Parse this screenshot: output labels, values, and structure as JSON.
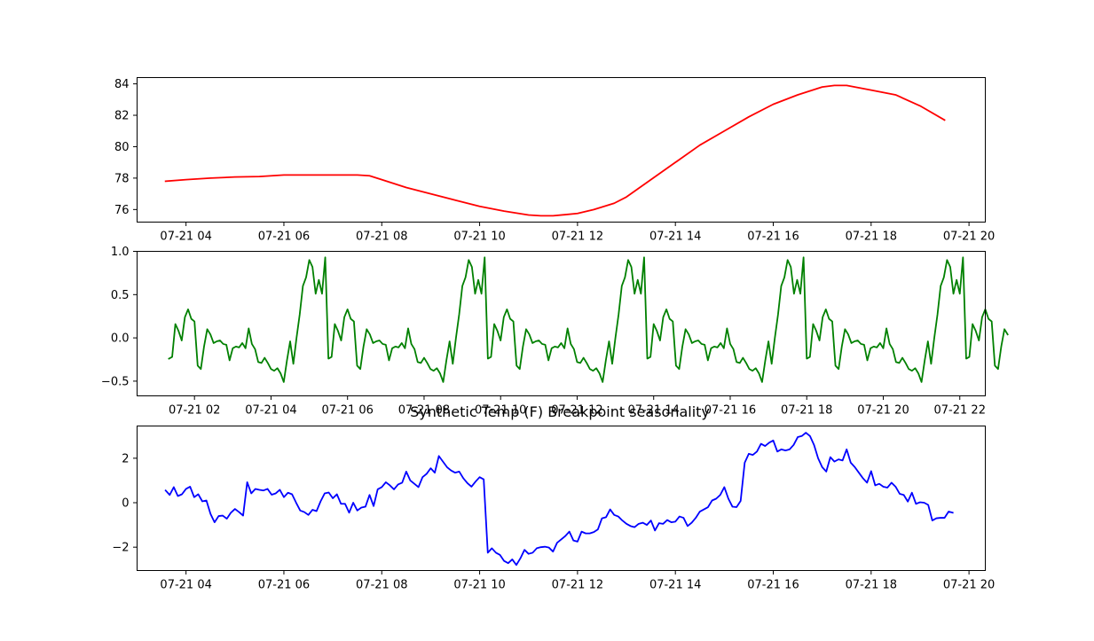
{
  "chart_data": [
    {
      "type": "line",
      "title": "",
      "xlabel": "",
      "ylabel": "",
      "grid": false,
      "legend": "none",
      "x_range": [
        "07-21 03:00",
        "07-21 20:20"
      ],
      "ylim": [
        75.2,
        84.4
      ],
      "x_ticks": [
        "07-21 04:00",
        "07-21 06:00",
        "07-21 08:00",
        "07-21 10:00",
        "07-21 12:00",
        "07-21 14:00",
        "07-21 16:00",
        "07-21 18:00",
        "07-21 20:00"
      ],
      "x_tick_labels": [
        "07-21 04",
        "07-21 06",
        "07-21 08",
        "07-21 10",
        "07-21 12",
        "07-21 14",
        "07-21 16",
        "07-21 18",
        "07-21 20"
      ],
      "y_ticks": [
        76,
        78,
        80,
        82,
        84
      ],
      "y_tick_labels": [
        "76",
        "78",
        "80",
        "82",
        "84"
      ],
      "series": [
        {
          "color": "#ff0000",
          "x": [
            "07-21 03:35",
            "07-21 04:00",
            "07-21 04:30",
            "07-21 05:00",
            "07-21 05:30",
            "07-21 06:00",
            "07-21 06:30",
            "07-21 07:00",
            "07-21 07:30",
            "07-21 07:45",
            "07-21 08:00",
            "07-21 08:30",
            "07-21 09:00",
            "07-21 09:30",
            "07-21 10:00",
            "07-21 10:30",
            "07-21 11:00",
            "07-21 11:15",
            "07-21 11:30",
            "07-21 12:00",
            "07-21 12:20",
            "07-21 12:45",
            "07-21 13:00",
            "07-21 13:30",
            "07-21 14:00",
            "07-21 14:30",
            "07-21 15:00",
            "07-21 15:30",
            "07-21 16:00",
            "07-21 16:30",
            "07-21 17:00",
            "07-21 17:15",
            "07-21 17:30",
            "07-21 18:00",
            "07-21 18:30",
            "07-21 19:00",
            "07-21 19:30"
          ],
          "values": [
            77.8,
            77.9,
            78.0,
            78.07,
            78.1,
            78.2,
            78.2,
            78.2,
            78.2,
            78.15,
            77.9,
            77.4,
            77.0,
            76.6,
            76.2,
            75.9,
            75.65,
            75.6,
            75.6,
            75.75,
            76.0,
            76.4,
            76.8,
            77.9,
            79.0,
            80.1,
            81.0,
            81.9,
            82.7,
            83.3,
            83.8,
            83.9,
            83.9,
            83.6,
            83.3,
            82.6,
            81.7
          ]
        }
      ]
    },
    {
      "type": "line",
      "title": "",
      "xlabel": "",
      "ylabel": "",
      "grid": false,
      "legend": "none",
      "x_range": [
        "07-21 00:30",
        "07-21 22:40"
      ],
      "ylim": [
        -0.67,
        1.0
      ],
      "x_ticks": [
        "07-21 02:00",
        "07-21 04:00",
        "07-21 06:00",
        "07-21 08:00",
        "07-21 10:00",
        "07-21 12:00",
        "07-21 14:00",
        "07-21 16:00",
        "07-21 18:00",
        "07-21 20:00",
        "07-21 22:00"
      ],
      "x_tick_labels": [
        "07-21 02",
        "07-21 04",
        "07-21 06",
        "07-21 08",
        "07-21 10",
        "07-21 12",
        "07-21 14",
        "07-21 16",
        "07-21 18",
        "07-21 20",
        "07-21 22"
      ],
      "y_ticks": [
        -0.5,
        0.0,
        0.5,
        1.0
      ],
      "y_tick_labels": [
        "−0.5",
        "0.0",
        "0.5",
        "1.0"
      ],
      "period_hours": 4,
      "start": "07-21 01:20",
      "step_minutes": 5,
      "periods_shown": 5.25,
      "series": [
        {
          "color": "#008000",
          "cycle_values": [
            -0.24,
            -0.22,
            0.16,
            0.08,
            -0.03,
            0.24,
            0.33,
            0.22,
            0.19,
            -0.32,
            -0.36,
            -0.1,
            0.1,
            0.04,
            -0.06,
            -0.04,
            -0.03,
            -0.07,
            -0.08,
            -0.26,
            -0.12,
            -0.1,
            -0.11,
            -0.06,
            -0.12,
            0.11,
            -0.07,
            -0.13,
            -0.28,
            -0.29,
            -0.23,
            -0.29,
            -0.36,
            -0.38,
            -0.35,
            -0.41,
            -0.51,
            -0.26,
            -0.04,
            -0.3,
            0.0,
            0.27,
            0.6,
            0.7,
            0.9,
            0.82,
            0.51,
            0.67,
            0.51,
            0.93
          ]
        }
      ]
    },
    {
      "type": "line",
      "title": "Synthetic Temp (F) Breakpoint seasonality",
      "xlabel": "",
      "ylabel": "",
      "grid": false,
      "legend": "none",
      "x_range": [
        "07-21 03:00",
        "07-21 20:20"
      ],
      "ylim": [
        -3.05,
        3.45
      ],
      "x_ticks": [
        "07-21 04:00",
        "07-21 06:00",
        "07-21 08:00",
        "07-21 10:00",
        "07-21 12:00",
        "07-21 14:00",
        "07-21 16:00",
        "07-21 18:00",
        "07-21 20:00"
      ],
      "x_tick_labels": [
        "07-21 04",
        "07-21 06",
        "07-21 08",
        "07-21 10",
        "07-21 12",
        "07-21 14",
        "07-21 16",
        "07-21 18",
        "07-21 20"
      ],
      "y_ticks": [
        -2,
        0,
        2
      ],
      "y_tick_labels": [
        "−2",
        "0",
        "2"
      ],
      "start": "07-21 03:35",
      "step_minutes": 5,
      "series": [
        {
          "color": "#0000ff",
          "values": [
            0.55,
            0.35,
            0.7,
            0.3,
            0.38,
            0.62,
            0.72,
            0.25,
            0.38,
            0.06,
            0.1,
            -0.5,
            -0.88,
            -0.6,
            -0.58,
            -0.72,
            -0.45,
            -0.28,
            -0.42,
            -0.58,
            0.92,
            0.42,
            0.62,
            0.58,
            0.55,
            0.62,
            0.36,
            0.42,
            0.58,
            0.25,
            0.45,
            0.38,
            0.0,
            -0.35,
            -0.42,
            -0.55,
            -0.32,
            -0.38,
            0.06,
            0.42,
            0.46,
            0.2,
            0.38,
            -0.05,
            -0.05,
            -0.45,
            0.0,
            -0.35,
            -0.22,
            -0.18,
            0.35,
            -0.15,
            0.6,
            0.7,
            0.92,
            0.78,
            0.6,
            0.82,
            0.9,
            1.4,
            1.0,
            0.85,
            0.7,
            1.15,
            1.3,
            1.55,
            1.35,
            2.1,
            1.85,
            1.6,
            1.45,
            1.35,
            1.4,
            1.1,
            0.88,
            0.72,
            0.95,
            1.15,
            1.05,
            -2.25,
            -2.05,
            -2.25,
            -2.35,
            -2.62,
            -2.72,
            -2.55,
            -2.8,
            -2.5,
            -2.12,
            -2.3,
            -2.25,
            -2.05,
            -2.0,
            -1.98,
            -2.02,
            -2.2,
            -1.8,
            -1.65,
            -1.5,
            -1.3,
            -1.7,
            -1.75,
            -1.3,
            -1.38,
            -1.38,
            -1.32,
            -1.2,
            -0.7,
            -0.65,
            -0.3,
            -0.55,
            -0.62,
            -0.8,
            -0.95,
            -1.05,
            -1.1,
            -0.95,
            -0.9,
            -1.0,
            -0.8,
            -1.25,
            -0.92,
            -0.95,
            -0.78,
            -0.88,
            -0.85,
            -0.62,
            -0.68,
            -1.05,
            -0.9,
            -0.68,
            -0.4,
            -0.3,
            -0.2,
            0.1,
            0.18,
            0.35,
            0.7,
            0.18,
            -0.18,
            -0.2,
            0.08,
            1.8,
            2.2,
            2.15,
            2.3,
            2.65,
            2.55,
            2.7,
            2.8,
            2.3,
            2.4,
            2.35,
            2.4,
            2.6,
            2.95,
            3.0,
            3.15,
            3.0,
            2.6,
            2.0,
            1.6,
            1.4,
            2.05,
            1.85,
            1.95,
            1.9,
            2.4,
            1.8,
            1.6,
            1.35,
            1.1,
            0.9,
            1.42,
            0.78,
            0.85,
            0.72,
            0.68,
            0.9,
            0.72,
            0.4,
            0.35,
            0.05,
            0.45,
            -0.05,
            0.02,
            0.0,
            -0.1,
            -0.8,
            -0.7,
            -0.68,
            -0.68,
            -0.4,
            -0.45
          ]
        }
      ]
    }
  ]
}
